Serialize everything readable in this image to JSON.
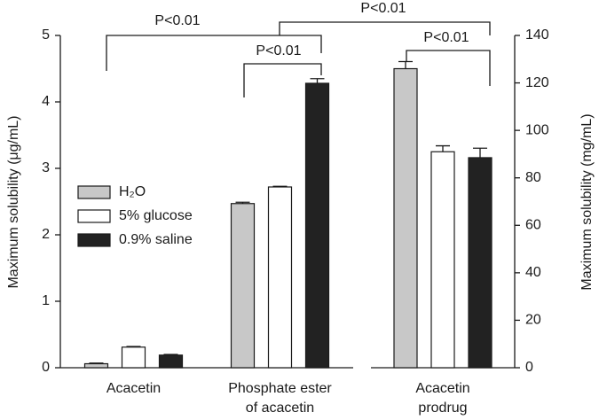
{
  "chart_data": [
    {
      "type": "bar",
      "ylabel": "Maximum solubility (μg/mL)",
      "categories": [
        [
          "Acacetin"
        ],
        [
          "Phosphate ester",
          "of acacetin"
        ]
      ],
      "series": [
        {
          "name": "H₂O",
          "color": "#c8c8c8",
          "values": [
            0.06,
            2.47
          ],
          "errors": [
            0.01,
            0.02
          ]
        },
        {
          "name": "5% glucose",
          "color": "#ffffff",
          "values": [
            0.31,
            2.72
          ],
          "errors": [
            0.01,
            0.01
          ]
        },
        {
          "name": "0.9% saline",
          "color": "#222222",
          "values": [
            0.19,
            4.28
          ],
          "errors": [
            0.01,
            0.07
          ]
        }
      ],
      "ylim": [
        0,
        5
      ],
      "yticks": [
        0,
        1,
        2,
        3,
        4,
        5
      ],
      "annotations": [
        "P<0.01",
        "P<0.01"
      ]
    },
    {
      "type": "bar",
      "y2label": "Maximum solubility (mg/mL)",
      "categories": [
        [
          "Acacetin",
          "prodrug"
        ]
      ],
      "series": [
        {
          "color": "#c8c8c8",
          "axis": "y2",
          "values": [
            126
          ],
          "errors": [
            3
          ]
        },
        {
          "color": "#ffffff",
          "axis": "y2",
          "values": [
            91
          ],
          "errors": [
            2.5
          ]
        },
        {
          "color": "#222222",
          "axis": "y2",
          "values": [
            88.5
          ],
          "errors": [
            4
          ]
        }
      ],
      "y2lim": [
        0,
        140
      ],
      "y2ticks": [
        0,
        20,
        40,
        60,
        80,
        100,
        120,
        140
      ],
      "annotations": [
        "P<0.01",
        "P<0.01"
      ]
    }
  ]
}
